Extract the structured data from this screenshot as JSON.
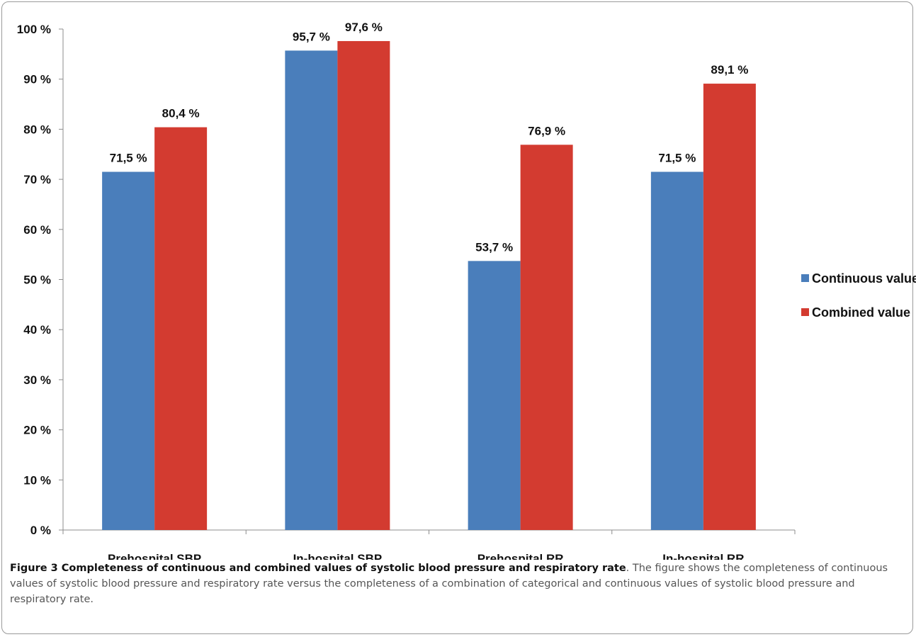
{
  "caption": {
    "label": "Figure 3",
    "title": "Completeness of continuous and combined values of systolic blood pressure and respiratory rate",
    "text": ". The figure shows the completeness of continuous values of systolic blood pressure and respiratory rate versus the completeness of a combination of categorical and continuous values of systolic blood pressure and respiratory rate."
  },
  "chart_data": {
    "type": "bar",
    "categories": [
      "Prehospital SBP",
      "In-hospital SBP",
      "Prehospital RR",
      "In-hospital RR"
    ],
    "series": [
      {
        "name": "Continuous value",
        "color": "#4a7ebb",
        "values": [
          71.5,
          95.7,
          53.7,
          71.5
        ],
        "labels": [
          "71,5 %",
          "95,7 %",
          "53,7 %",
          "71,5 %"
        ]
      },
      {
        "name": "Combined value",
        "color": "#d33b30",
        "values": [
          80.4,
          97.6,
          76.9,
          89.1
        ],
        "labels": [
          "80,4 %",
          "97,6 %",
          "76,9 %",
          "89,1 %"
        ]
      }
    ],
    "yticks": [
      0,
      10,
      20,
      30,
      40,
      50,
      60,
      70,
      80,
      90,
      100
    ],
    "ytick_labels": [
      "0 %",
      "10 %",
      "20 %",
      "30 %",
      "40 %",
      "50 %",
      "60 %",
      "70 %",
      "80 %",
      "90 %",
      "100 %"
    ],
    "ylim": [
      0,
      100
    ],
    "title": "",
    "xlabel": "",
    "ylabel": "",
    "grid": false,
    "legend_position": "right"
  }
}
